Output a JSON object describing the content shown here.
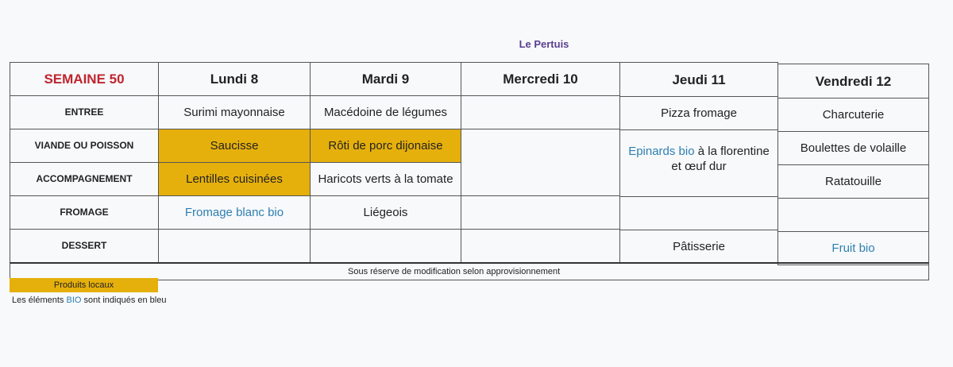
{
  "title": "Le Pertuis",
  "week": "SEMAINE 50",
  "days": [
    "Lundi 8",
    "Mardi 9",
    "Mercredi 10",
    "Jeudi 11",
    "Vendredi 12"
  ],
  "rows": [
    "ENTREE",
    "VIANDE OU POISSON",
    "ACCOMPAGNEMENT",
    "FROMAGE",
    "DESSERT"
  ],
  "menu": {
    "lundi": {
      "entree": "Surimi mayonnaise",
      "viande": "Saucisse",
      "accompagnement": "Lentilles cuisinées",
      "fromage": "Fromage blanc bio",
      "dessert": ""
    },
    "mardi": {
      "entree": "Macédoine de légumes",
      "viande": "Rôti de porc dijonaise",
      "accompagnement": "Haricots verts à la tomate",
      "fromage": "Liégeois",
      "dessert": ""
    },
    "mercredi": {
      "entree": "",
      "plat": "",
      "fromage": "",
      "dessert": ""
    },
    "jeudi": {
      "entree": "Pizza fromage",
      "plat_bio": "Epinards bio",
      "plat_rest": " à la florentine",
      "plat_line2": "et œuf dur",
      "fromage": "",
      "dessert": "Pâtisserie"
    },
    "vendredi": {
      "entree": "Charcuterie",
      "viande": "Boulettes de volaille",
      "accompagnement": "Ratatouille",
      "fromage": "",
      "dessert": "Fruit bio"
    }
  },
  "note": "Sous réserve de modification selon approvisionnement",
  "legend": {
    "local": "Produits locaux",
    "bio_prefix": "Les éléments ",
    "bio_word": "BIO",
    "bio_suffix": " sont indiqués en bleu"
  },
  "colors": {
    "local": "#e6b00c",
    "bio": "#2f7fb0",
    "week": "#c0242e",
    "title": "#5b3f8f"
  }
}
